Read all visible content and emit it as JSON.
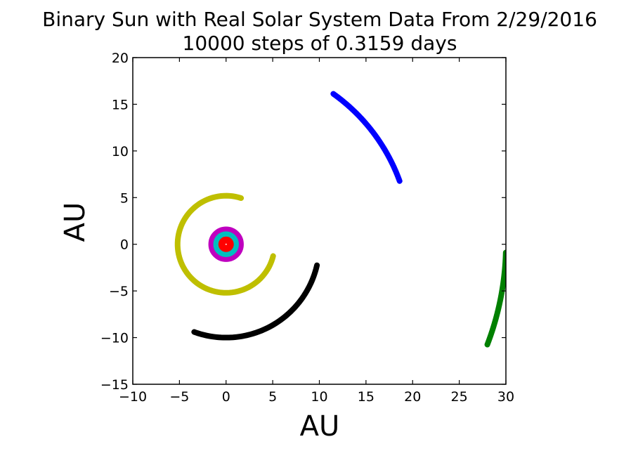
{
  "chart_data": {
    "type": "scatter",
    "title": "Binary Sun with Real Solar System Data From 2/29/2016",
    "subtitle": "10000 steps of 0.3159 days",
    "xlabel": "AU",
    "ylabel": "AU",
    "xlim": [
      -10,
      30
    ],
    "ylim": [
      -15,
      20
    ],
    "xticks": [
      -10,
      -5,
      0,
      5,
      10,
      15,
      20,
      25,
      30
    ],
    "yticks": [
      -15,
      -10,
      -5,
      0,
      5,
      10,
      15,
      20
    ],
    "xtick_labels": [
      "−10",
      "−5",
      "0",
      "5",
      "10",
      "15",
      "20",
      "25",
      "30"
    ],
    "ytick_labels": [
      "−15",
      "−10",
      "−5",
      "0",
      "5",
      "10",
      "15",
      "20"
    ],
    "grid": false,
    "legend": "none",
    "series": [
      {
        "color": "#bf00bf",
        "kind": "ring",
        "center": [
          0,
          0
        ],
        "radius": 1.52,
        "start_deg": 0,
        "end_deg": 360
      },
      {
        "color": "#00bfbf",
        "kind": "ring",
        "center": [
          0,
          0
        ],
        "radius": 1.0,
        "start_deg": 0,
        "end_deg": 360
      },
      {
        "color": "#ff0000",
        "kind": "ring",
        "center": [
          0,
          0
        ],
        "radius": 0.45,
        "start_deg": 0,
        "end_deg": 360
      },
      {
        "color": "#bfbf00",
        "kind": "arc",
        "center": [
          0,
          0
        ],
        "radius": 5.2,
        "start_deg": 72,
        "end_deg": 346,
        "points": [
          [
            1.6,
            4.9
          ],
          [
            5.2,
            0.0
          ],
          [
            0.0,
            -5.2
          ],
          [
            -5.2,
            0.0
          ],
          [
            -5.1,
            1.2
          ]
        ]
      },
      {
        "color": "#000000",
        "kind": "arc",
        "center": [
          0,
          0
        ],
        "radius": 10.0,
        "start_deg": -13,
        "end_deg": -110,
        "points": [
          [
            9.4,
            -2.2
          ],
          [
            7.0,
            -7.0
          ],
          [
            0.0,
            -10.0
          ],
          [
            -3.4,
            -9.4
          ]
        ]
      },
      {
        "color": "#0000ff",
        "kind": "arc",
        "center": [
          0,
          0
        ],
        "radius": 19.8,
        "start_deg": 54.5,
        "end_deg": 20,
        "points": [
          [
            11.4,
            15.9
          ],
          [
            15.5,
            12.4
          ],
          [
            18.8,
            6.8
          ]
        ]
      },
      {
        "color": "#008000",
        "kind": "arc",
        "center": [
          0,
          0
        ],
        "radius": 30.0,
        "start_deg": -1.7,
        "end_deg": -21,
        "points": [
          [
            29.9,
            -0.9
          ],
          [
            29.2,
            -6.0
          ],
          [
            28.0,
            -10.5
          ]
        ]
      }
    ]
  }
}
